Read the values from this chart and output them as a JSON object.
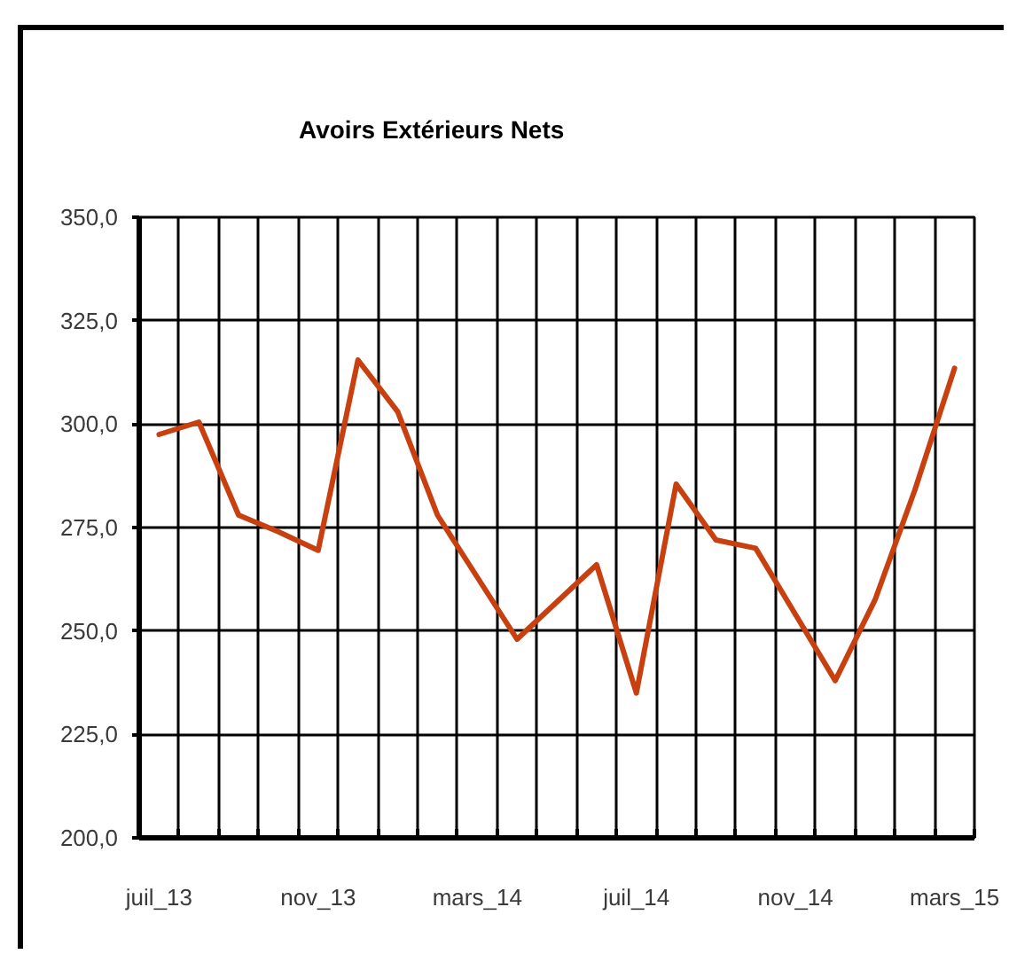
{
  "chart_data": {
    "type": "line",
    "title": "Avoirs Extérieurs Nets",
    "categories": [
      "juil_13",
      null,
      null,
      null,
      "nov_13",
      null,
      null,
      null,
      "mars_14",
      null,
      null,
      null,
      "juil_14",
      null,
      null,
      null,
      "nov_14",
      null,
      null,
      null,
      "mars_15"
    ],
    "series": [
      {
        "color": "#c8400f",
        "values": [
          297.5,
          300.5,
          278,
          274,
          269.5,
          315.5,
          303,
          278,
          263,
          248,
          257,
          266,
          235,
          285.5,
          272,
          270,
          254,
          238,
          257.5,
          284,
          313.5
        ]
      }
    ],
    "ylim": [
      200,
      350
    ],
    "yticks": [
      {
        "value": 200,
        "label": "200,0"
      },
      {
        "value": 225,
        "label": "225,0"
      },
      {
        "value": 250,
        "label": "250,0"
      },
      {
        "value": 275,
        "label": "275,0"
      },
      {
        "value": 300,
        "label": "300,0"
      },
      {
        "value": 325,
        "label": "325,0"
      },
      {
        "value": 350,
        "label": "350,0"
      }
    ],
    "grid": true,
    "line_style": "solid"
  }
}
